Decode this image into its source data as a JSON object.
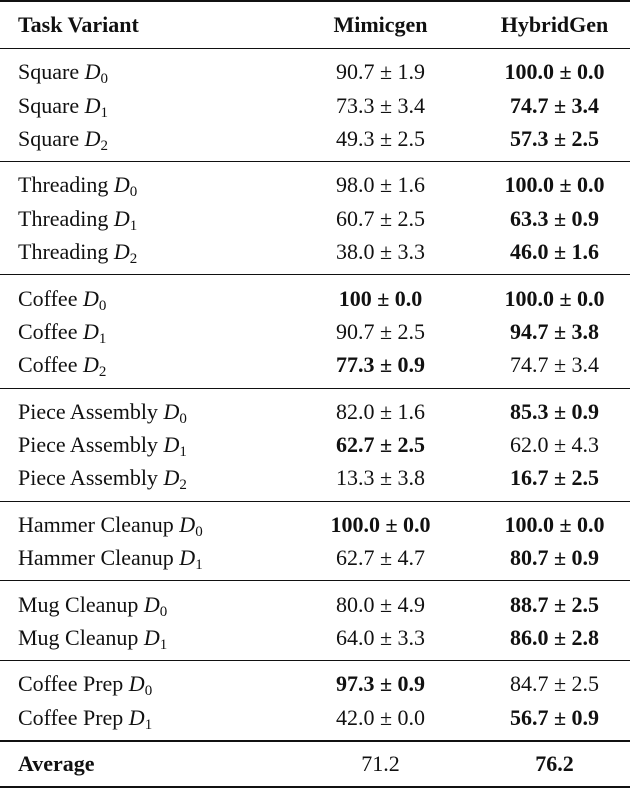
{
  "header": {
    "task": "Task Variant",
    "mimicgen": "Mimicgen",
    "hybridgen": "HybridGen"
  },
  "groups": [
    {
      "rows": [
        {
          "task": "Square",
          "var": "D",
          "sub": "0",
          "mimicgen": {
            "text": "90.7 ± 1.9",
            "bold": false
          },
          "hybridgen": {
            "text": "100.0 ± 0.0",
            "bold": true
          }
        },
        {
          "task": "Square",
          "var": "D",
          "sub": "1",
          "mimicgen": {
            "text": "73.3 ± 3.4",
            "bold": false
          },
          "hybridgen": {
            "text": "74.7 ± 3.4",
            "bold": true
          }
        },
        {
          "task": "Square",
          "var": "D",
          "sub": "2",
          "mimicgen": {
            "text": "49.3 ± 2.5",
            "bold": false
          },
          "hybridgen": {
            "text": "57.3 ± 2.5",
            "bold": true
          }
        }
      ]
    },
    {
      "rows": [
        {
          "task": "Threading",
          "var": "D",
          "sub": "0",
          "mimicgen": {
            "text": "98.0 ± 1.6",
            "bold": false
          },
          "hybridgen": {
            "text": "100.0 ± 0.0",
            "bold": true
          }
        },
        {
          "task": "Threading",
          "var": "D",
          "sub": "1",
          "mimicgen": {
            "text": "60.7 ± 2.5",
            "bold": false
          },
          "hybridgen": {
            "text": "63.3 ± 0.9",
            "bold": true
          }
        },
        {
          "task": "Threading",
          "var": "D",
          "sub": "2",
          "mimicgen": {
            "text": "38.0 ± 3.3",
            "bold": false
          },
          "hybridgen": {
            "text": "46.0 ± 1.6",
            "bold": true
          }
        }
      ]
    },
    {
      "rows": [
        {
          "task": "Coffee",
          "var": "D",
          "sub": "0",
          "mimicgen": {
            "text": "100 ± 0.0",
            "bold": true
          },
          "hybridgen": {
            "text": "100.0 ± 0.0",
            "bold": true
          }
        },
        {
          "task": "Coffee",
          "var": "D",
          "sub": "1",
          "mimicgen": {
            "text": "90.7 ± 2.5",
            "bold": false
          },
          "hybridgen": {
            "text": "94.7 ± 3.8",
            "bold": true
          }
        },
        {
          "task": "Coffee",
          "var": "D",
          "sub": "2",
          "mimicgen": {
            "text": "77.3 ± 0.9",
            "bold": true
          },
          "hybridgen": {
            "text": "74.7 ± 3.4",
            "bold": false
          }
        }
      ]
    },
    {
      "rows": [
        {
          "task": "Piece Assembly",
          "var": "D",
          "sub": "0",
          "mimicgen": {
            "text": "82.0 ± 1.6",
            "bold": false
          },
          "hybridgen": {
            "text": "85.3 ± 0.9",
            "bold": true
          }
        },
        {
          "task": "Piece Assembly",
          "var": "D",
          "sub": "1",
          "mimicgen": {
            "text": "62.7 ± 2.5",
            "bold": true
          },
          "hybridgen": {
            "text": "62.0 ± 4.3",
            "bold": false
          }
        },
        {
          "task": "Piece Assembly",
          "var": "D",
          "sub": "2",
          "mimicgen": {
            "text": "13.3 ± 3.8",
            "bold": false
          },
          "hybridgen": {
            "text": "16.7 ± 2.5",
            "bold": true
          }
        }
      ]
    },
    {
      "rows": [
        {
          "task": "Hammer Cleanup",
          "var": "D",
          "sub": "0",
          "mimicgen": {
            "text": "100.0 ± 0.0",
            "bold": true
          },
          "hybridgen": {
            "text": "100.0 ± 0.0",
            "bold": true
          }
        },
        {
          "task": "Hammer Cleanup",
          "var": "D",
          "sub": "1",
          "mimicgen": {
            "text": "62.7 ± 4.7",
            "bold": false
          },
          "hybridgen": {
            "text": "80.7 ± 0.9",
            "bold": true
          }
        }
      ]
    },
    {
      "rows": [
        {
          "task": "Mug Cleanup",
          "var": "D",
          "sub": "0",
          "mimicgen": {
            "text": "80.0 ± 4.9",
            "bold": false
          },
          "hybridgen": {
            "text": "88.7 ± 2.5",
            "bold": true
          }
        },
        {
          "task": "Mug Cleanup",
          "var": "D",
          "sub": "1",
          "mimicgen": {
            "text": "64.0 ± 3.3",
            "bold": false
          },
          "hybridgen": {
            "text": "86.0 ± 2.8",
            "bold": true
          }
        }
      ]
    },
    {
      "rows": [
        {
          "task": "Coffee Prep",
          "var": "D",
          "sub": "0",
          "mimicgen": {
            "text": "97.3 ± 0.9",
            "bold": true
          },
          "hybridgen": {
            "text": "84.7 ± 2.5",
            "bold": false
          }
        },
        {
          "task": "Coffee Prep",
          "var": "D",
          "sub": "1",
          "mimicgen": {
            "text": "42.0 ± 0.0",
            "bold": false
          },
          "hybridgen": {
            "text": "56.7 ± 0.9",
            "bold": true
          }
        }
      ]
    }
  ],
  "average": {
    "label": "Average",
    "mimicgen": {
      "text": "71.2",
      "bold": false
    },
    "hybridgen": {
      "text": "76.2",
      "bold": true
    }
  }
}
